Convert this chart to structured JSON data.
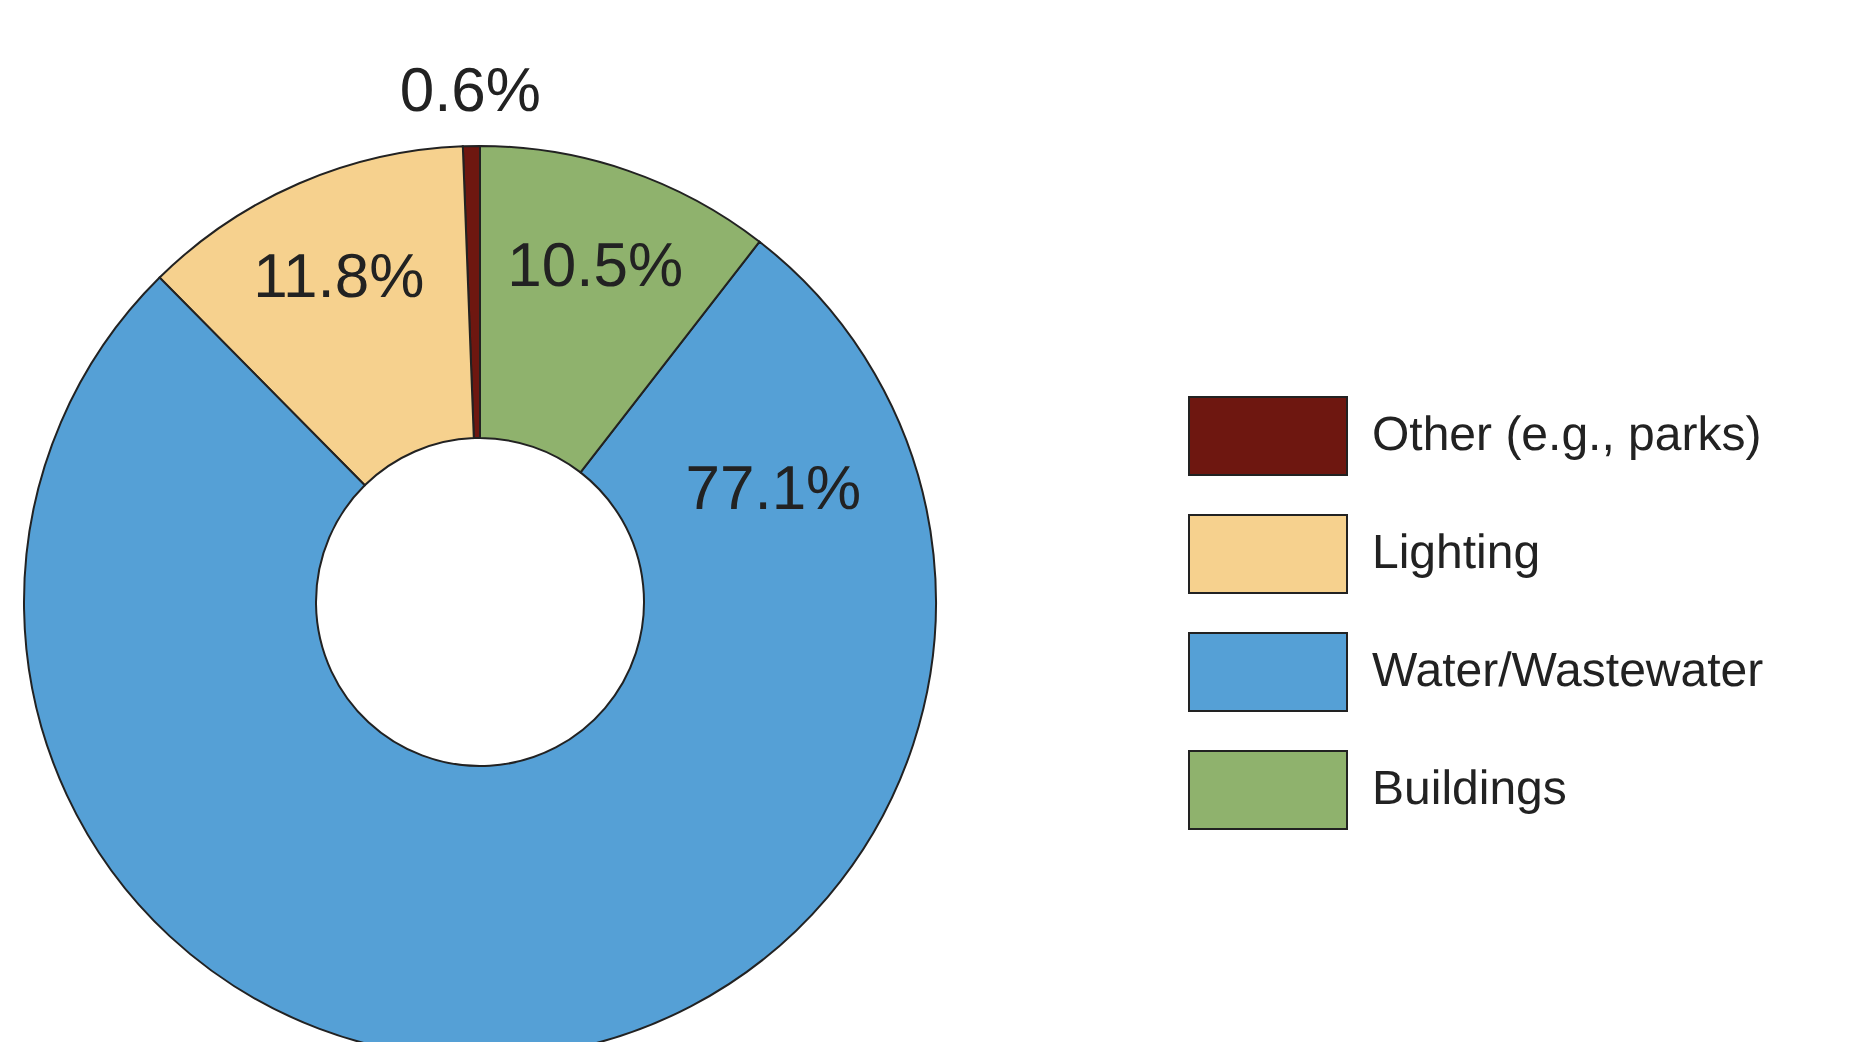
{
  "chart_data": {
    "type": "donut",
    "categories": [
      "Other (e.g., parks)",
      "Lighting",
      "Water/Wastewater",
      "Buildings"
    ],
    "values": [
      0.6,
      11.8,
      77.1,
      10.5
    ],
    "colors": [
      "#6e1710",
      "#f6d18e",
      "#55a0d6",
      "#8fb26d"
    ],
    "value_labels": [
      "0.6%",
      "11.8%",
      "77.1%",
      "10.5%"
    ],
    "legend": "right"
  }
}
